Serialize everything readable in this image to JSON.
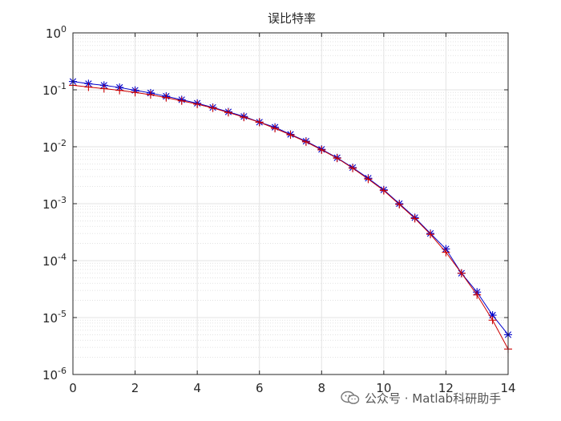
{
  "chart_data": {
    "type": "line",
    "title": "误比特率",
    "xlabel": "",
    "ylabel": "",
    "xlim": [
      0,
      14
    ],
    "ylim": [
      1e-06,
      1
    ],
    "yscale": "log",
    "grid": "on (major and minor)",
    "legend": "none",
    "x_tick_labels": [
      "0",
      "2",
      "4",
      "6",
      "8",
      "10",
      "12",
      "14"
    ],
    "y_tick_labels": [
      {
        "base": "10",
        "exp": "0",
        "value": 1
      },
      {
        "base": "10",
        "exp": "-1",
        "value": 0.1
      },
      {
        "base": "10",
        "exp": "-2",
        "value": 0.01
      },
      {
        "base": "10",
        "exp": "-3",
        "value": 0.001
      },
      {
        "base": "10",
        "exp": "-4",
        "value": 0.0001
      },
      {
        "base": "10",
        "exp": "-5",
        "value": 1e-05
      },
      {
        "base": "10",
        "exp": "-6",
        "value": 1e-06
      }
    ],
    "x": [
      0,
      0.5,
      1,
      1.5,
      2,
      2.5,
      3,
      3.5,
      4,
      4.5,
      5,
      5.5,
      6,
      6.5,
      7,
      7.5,
      8,
      8.5,
      9,
      9.5,
      10,
      10.5,
      11,
      11.5,
      12,
      12.5,
      13,
      13.5,
      14
    ],
    "series": [
      {
        "marker": "*",
        "color": "#0000cc",
        "values": [
          0.14,
          0.128,
          0.12,
          0.11,
          0.098,
          0.088,
          0.077,
          0.067,
          0.058,
          0.049,
          0.041,
          0.034,
          0.027,
          0.022,
          0.0165,
          0.0125,
          0.009,
          0.0064,
          0.0043,
          0.0028,
          0.00175,
          0.001,
          0.00057,
          0.0003,
          0.00016,
          6e-05,
          2.8e-05,
          1.1e-05,
          5e-06
        ]
      },
      {
        "marker": "+",
        "color": "#cc0000",
        "values": [
          0.12,
          0.112,
          0.105,
          0.098,
          0.09,
          0.082,
          0.073,
          0.064,
          0.056,
          0.048,
          0.04,
          0.033,
          0.027,
          0.021,
          0.0162,
          0.0122,
          0.0088,
          0.0063,
          0.0042,
          0.0027,
          0.0017,
          0.00097,
          0.00055,
          0.00029,
          0.00014,
          6e-05,
          2.5e-05,
          9e-06,
          2.8e-06
        ]
      }
    ]
  },
  "watermark": {
    "text": "公众号 · Matlab科研助手",
    "icon": "wechat-icon"
  }
}
